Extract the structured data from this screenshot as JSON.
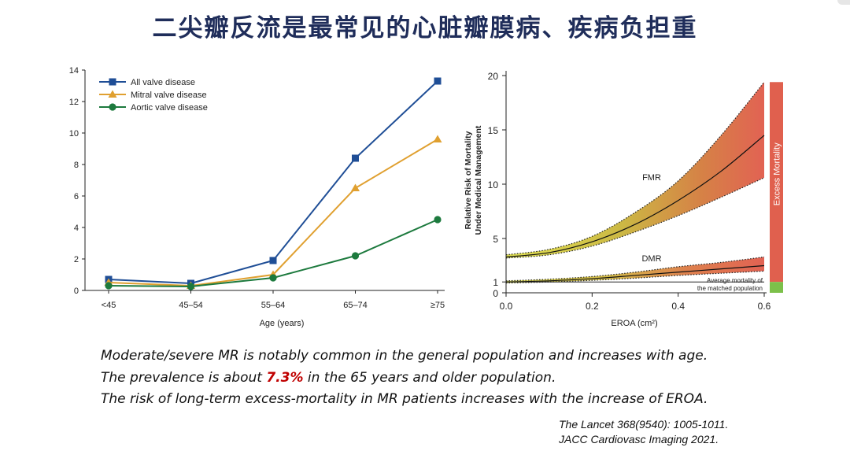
{
  "title": "二尖瓣反流是最常见的心脏瓣膜病、疾病负担重",
  "body": {
    "line1": "Moderate/severe MR is notably common in the general population and increases with age.",
    "line2_pre": "The prevalence is about ",
    "line2_highlight": "7.3%",
    "line2_post": "  in the 65 years and older population.",
    "line3": "The risk of long-term excess-mortality in MR patients increases with the increase of  EROA."
  },
  "citations": [
    "The Lancet 368(9540): 1005-1011.",
    "JACC Cardiovasc Imaging 2021."
  ],
  "colors": {
    "title": "#1f2d5a",
    "highlight": "#c00000"
  },
  "chart_data": [
    {
      "type": "line",
      "categories": [
        "<45",
        "45–54",
        "55–64",
        "65–74",
        "≥75"
      ],
      "xlabel": "Age (years)",
      "ylabel": "",
      "ylim": [
        0,
        14
      ],
      "yticks": [
        0,
        2,
        4,
        6,
        8,
        10,
        12,
        14
      ],
      "legend_position": "top-left",
      "grid": false,
      "series": [
        {
          "name": "All valve disease",
          "values": [
            0.7,
            0.45,
            1.9,
            8.4,
            13.3
          ],
          "color": "#1f4e96",
          "marker": "square"
        },
        {
          "name": "Mitral valve disease",
          "values": [
            0.5,
            0.3,
            1.0,
            6.5,
            9.6
          ],
          "color": "#e0a030",
          "marker": "triangle"
        },
        {
          "name": "Aortic valve disease",
          "values": [
            0.3,
            0.25,
            0.8,
            2.2,
            4.5
          ],
          "color": "#1d7a3e",
          "marker": "circle"
        }
      ]
    },
    {
      "type": "line",
      "xlabel": "EROA (cm²)",
      "ylabel": "Relative Risk of Mortality Under Medical Management",
      "ylabel_lines": [
        "Relative Risk of Mortality",
        "Under Medical Management"
      ],
      "xlim": [
        0,
        0.6
      ],
      "xticks": [
        0.0,
        0.2,
        0.4,
        0.6
      ],
      "xtick_labels": [
        "0.0",
        "0.2",
        "0.4",
        "0.6"
      ],
      "ylim": [
        0,
        20
      ],
      "yticks": [
        0,
        1,
        5,
        10,
        15,
        20
      ],
      "grid": false,
      "series": [
        {
          "name": "FMR",
          "x": [
            0.0,
            0.1,
            0.2,
            0.3,
            0.4,
            0.5,
            0.6
          ],
          "values": [
            3.3,
            3.7,
            4.7,
            6.3,
            8.5,
            11.2,
            14.5
          ],
          "lower": [
            3.2,
            3.5,
            4.3,
            5.6,
            7.1,
            8.8,
            10.6
          ],
          "upper": [
            3.5,
            4.0,
            5.2,
            7.4,
            10.3,
            14.5,
            19.4
          ]
        },
        {
          "name": "DMR",
          "x": [
            0.0,
            0.1,
            0.2,
            0.3,
            0.4,
            0.5,
            0.6
          ],
          "values": [
            1.0,
            1.1,
            1.3,
            1.6,
            1.9,
            2.2,
            2.5
          ],
          "lower": [
            0.9,
            1.0,
            1.15,
            1.35,
            1.6,
            1.8,
            2.0
          ],
          "upper": [
            1.1,
            1.25,
            1.5,
            1.9,
            2.4,
            2.8,
            3.3
          ]
        }
      ],
      "reference_line": {
        "value": 1,
        "label_lines": [
          "Average mortality of",
          "the matched population"
        ]
      },
      "side_bar_label": "Excess Mortality",
      "colors": {
        "band_low": "#d8dc3c",
        "band_high": "#e05a4a",
        "side_bar": "#e0604e",
        "side_bar_base": "#7cc04a"
      }
    }
  ]
}
